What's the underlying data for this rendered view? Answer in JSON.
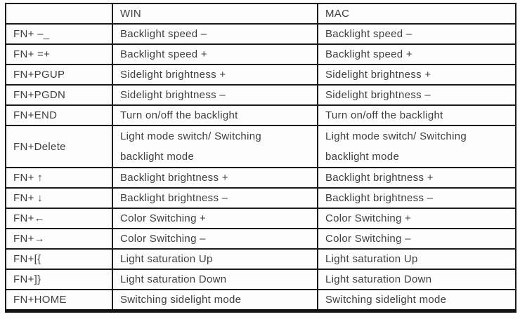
{
  "colors": {
    "background": "#fdfdfd",
    "border": "#1a1a1a",
    "text": "#3e3e3e"
  },
  "table": {
    "columns": [
      "",
      "WIN",
      "MAC"
    ],
    "rows": [
      {
        "key": "FN+ –_",
        "win": "Backlight speed –",
        "mac": "Backlight speed –"
      },
      {
        "key": "FN+ =+",
        "win": "Backlight speed +",
        "mac": "Backlight speed +"
      },
      {
        "key": "FN+PGUP",
        "win": "Sidelight brightness +",
        "mac": "Sidelight brightness +"
      },
      {
        "key": "FN+PGDN",
        "win": "Sidelight brightness –",
        "mac": "Sidelight brightness –"
      },
      {
        "key": "FN+END",
        "win": "Turn on/off the backlight",
        "mac": "Turn on/off the backlight"
      },
      {
        "key": "FN+Delete",
        "win_lines": [
          "Light mode switch/ Switching",
          "backlight mode"
        ],
        "mac_lines": [
          "Light mode switch/ Switching",
          "backlight mode"
        ]
      },
      {
        "key": "FN+ ↑",
        "win": "Backlight brightness +",
        "mac": "Backlight brightness +"
      },
      {
        "key": "FN+ ↓",
        "win": "Backlight brightness –",
        "mac": "Backlight brightness –"
      },
      {
        "key": "FN+←",
        "win": "Color Switching +",
        "mac": "Color Switching +"
      },
      {
        "key": "FN+→",
        "win": "Color Switching –",
        "mac": "Color Switching –"
      },
      {
        "key": "FN+[{",
        "win": "Light saturation Up",
        "mac": "Light saturation Up"
      },
      {
        "key": "FN+]}",
        "win": "Light saturation Down",
        "mac": "Light saturation Down"
      },
      {
        "key": "FN+HOME",
        "win": "Switching sidelight mode",
        "mac": "Switching sidelight mode"
      }
    ]
  }
}
